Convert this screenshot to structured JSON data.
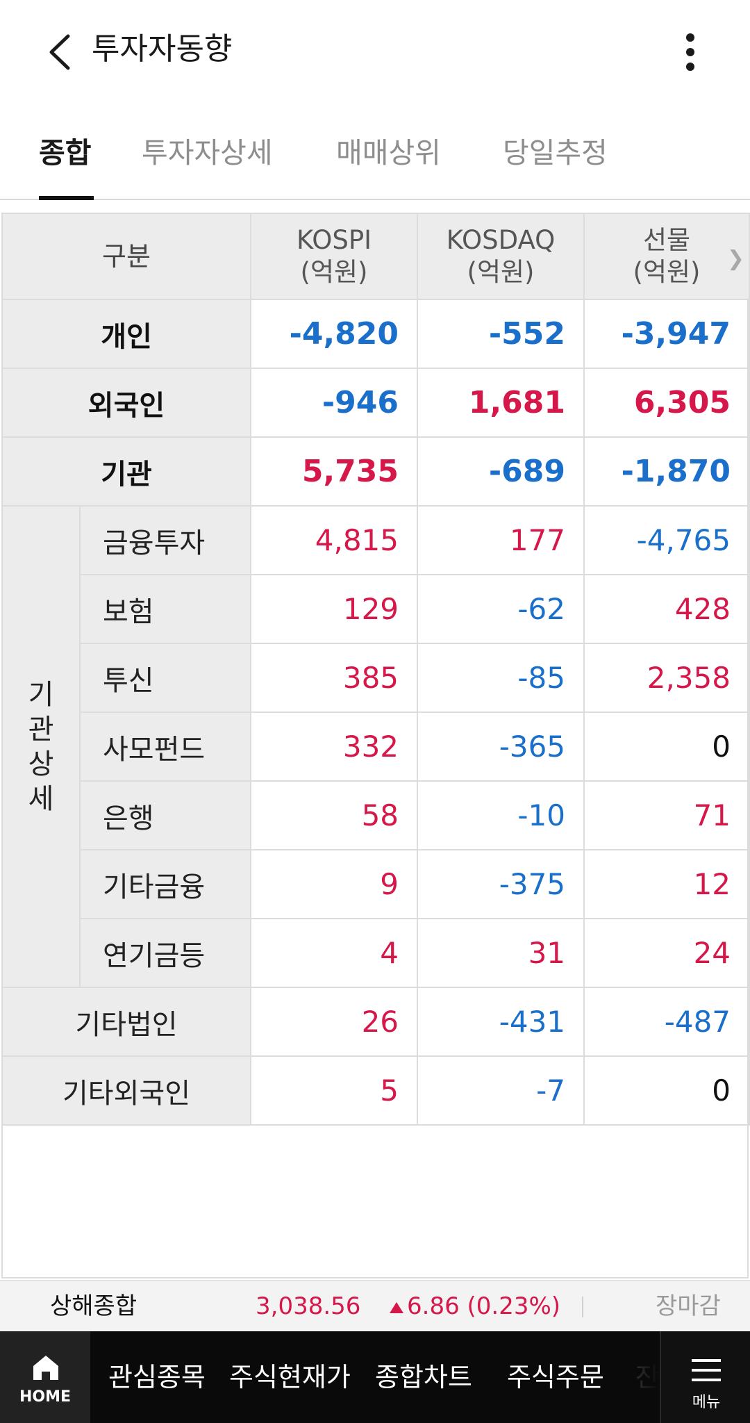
{
  "header": {
    "title": "투자자동향"
  },
  "tabs": [
    {
      "label": "종합"
    },
    {
      "label": "투자자상세"
    },
    {
      "label": "매매상위"
    },
    {
      "label": "당일추정"
    }
  ],
  "table": {
    "columns": [
      {
        "label": "구분"
      },
      {
        "label": "KOSPI",
        "unit": "(억원)"
      },
      {
        "label": "KOSDAQ",
        "unit": "(억원)"
      },
      {
        "label": "선물",
        "unit": "(억원)"
      }
    ],
    "main_rows": [
      {
        "label": "개인",
        "values": [
          "-4,820",
          "-552",
          "-3,947"
        ]
      },
      {
        "label": "외국인",
        "values": [
          "-946",
          "1,681",
          "6,305"
        ]
      },
      {
        "label": "기관",
        "values": [
          "5,735",
          "-689",
          "-1,870"
        ]
      }
    ],
    "group_label_chars": [
      "기",
      "관",
      "상",
      "세"
    ],
    "detail_rows": [
      {
        "label": "금융투자",
        "values": [
          "4,815",
          "177",
          "-4,765"
        ]
      },
      {
        "label": "보험",
        "values": [
          "129",
          "-62",
          "428"
        ]
      },
      {
        "label": "투신",
        "values": [
          "385",
          "-85",
          "2,358"
        ]
      },
      {
        "label": "사모펀드",
        "values": [
          "332",
          "-365",
          "0"
        ]
      },
      {
        "label": "은행",
        "values": [
          "58",
          "-10",
          "71"
        ]
      },
      {
        "label": "기타금융",
        "values": [
          "9",
          "-375",
          "12"
        ]
      },
      {
        "label": "연기금등",
        "values": [
          "4",
          "31",
          "24"
        ]
      }
    ],
    "other_rows": [
      {
        "label": "기타법인",
        "values": [
          "26",
          "-431",
          "-487"
        ]
      },
      {
        "label": "기타외국인",
        "values": [
          "5",
          "-7",
          "0"
        ]
      }
    ]
  },
  "ticker": {
    "name": "상해종합",
    "price": "3,038.56",
    "change": "6.86 (0.23%)",
    "status": "장마감"
  },
  "bottom_nav": {
    "home_label": "HOME",
    "items": [
      "관심종목",
      "주식현재가",
      "종합차트",
      "주식주문",
      "잔"
    ],
    "menu_label": "메뉴"
  },
  "colors": {
    "positive": "#d5174a",
    "negative": "#1a6fca",
    "neutral": "#111111"
  }
}
